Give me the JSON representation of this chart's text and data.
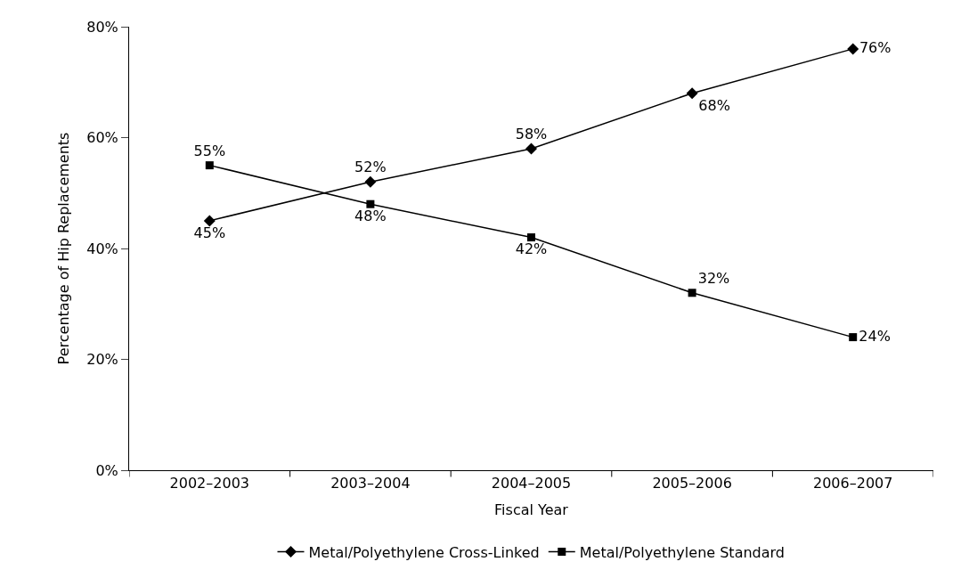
{
  "chart_data": {
    "type": "line",
    "xlabel": "Fiscal Year",
    "ylabel": "Percentage of Hip Replacements",
    "categories": [
      "2002–2003",
      "2003–2004",
      "2004–2005",
      "2005–2006",
      "2006–2007"
    ],
    "series": [
      {
        "name": "Metal/Polyethylene Cross-Linked",
        "color": "#000000",
        "marker": "diamond",
        "values": [
          45,
          52,
          58,
          68,
          76
        ],
        "value_labels": [
          "45%",
          "52%",
          "58%",
          "68%",
          "76%"
        ]
      },
      {
        "name": "Metal/Polyethylene Standard",
        "color": "#000000",
        "marker": "square",
        "values": [
          55,
          48,
          42,
          32,
          24
        ],
        "value_labels": [
          "55%",
          "48%",
          "42%",
          "32%",
          "24%"
        ]
      }
    ],
    "ylim": [
      0,
      80
    ],
    "yticks": [
      {
        "value": 0,
        "label": "0%"
      },
      {
        "value": 20,
        "label": "20%"
      },
      {
        "value": 40,
        "label": "40%"
      },
      {
        "value": 60,
        "label": "60%"
      },
      {
        "value": 80,
        "label": "80%"
      }
    ],
    "legend": "bottom",
    "line_style": "solid"
  }
}
